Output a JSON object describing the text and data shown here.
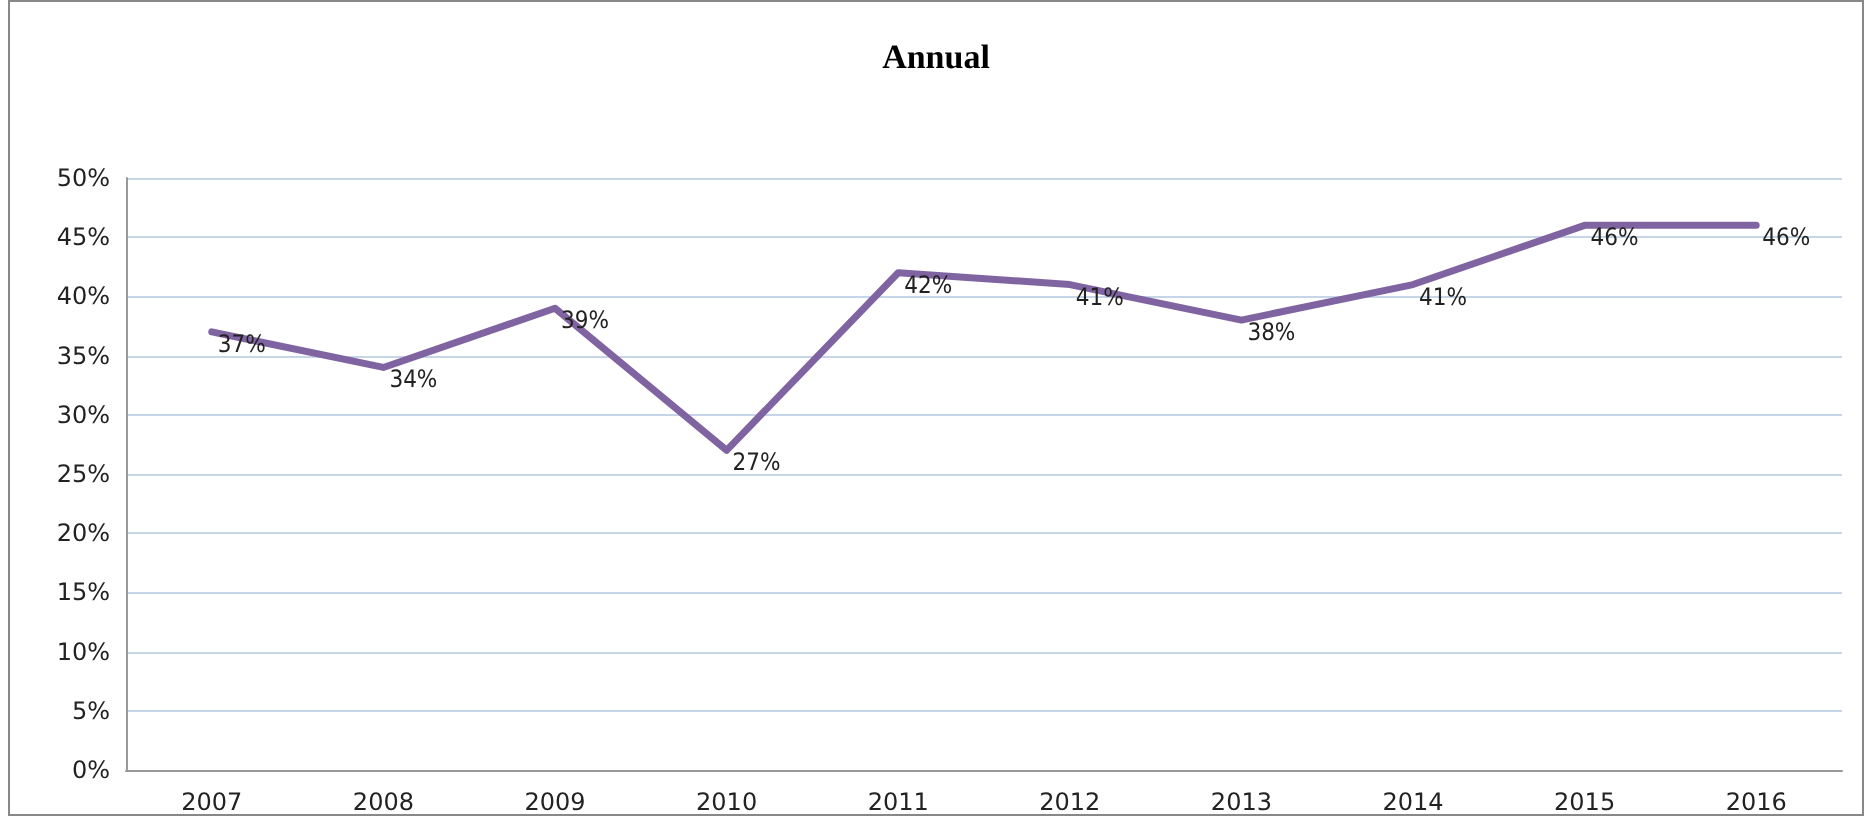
{
  "chart_data": {
    "type": "line",
    "title": "Annual",
    "categories": [
      "2007",
      "2008",
      "2009",
      "2010",
      "2011",
      "2012",
      "2013",
      "2014",
      "2015",
      "2016"
    ],
    "series": [
      {
        "color": "#8064a2",
        "values": [
          37,
          34,
          39,
          27,
          42,
          41,
          38,
          41,
          46,
          46
        ],
        "value_labels": [
          "37%",
          "34%",
          "39%",
          "27%",
          "42%",
          "41%",
          "38%",
          "41%",
          "46%",
          "46%"
        ]
      }
    ],
    "ylim": [
      0,
      50
    ],
    "yticks": [
      {
        "value": 0,
        "label": "0%"
      },
      {
        "value": 5,
        "label": "5%"
      },
      {
        "value": 10,
        "label": "10%"
      },
      {
        "value": 15,
        "label": "15%"
      },
      {
        "value": 20,
        "label": "20%"
      },
      {
        "value": 25,
        "label": "25%"
      },
      {
        "value": 30,
        "label": "30%"
      },
      {
        "value": 35,
        "label": "35%"
      },
      {
        "value": 40,
        "label": "40%"
      },
      {
        "value": 45,
        "label": "45%"
      },
      {
        "value": 50,
        "label": "50%"
      }
    ],
    "grid": "y",
    "marker": "none",
    "line_style": "solid"
  }
}
